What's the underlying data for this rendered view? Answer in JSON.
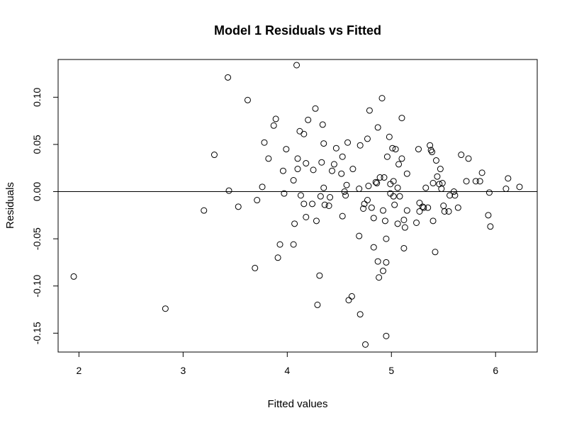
{
  "chart_data": {
    "type": "scatter",
    "title": "Model 1 Residuals vs Fitted",
    "xlabel": "Fitted values",
    "ylabel": "Residuals",
    "xlim": [
      1.8,
      6.4
    ],
    "ylim": [
      -0.17,
      0.14
    ],
    "x_ticks": [
      2,
      3,
      4,
      5,
      6
    ],
    "x_tick_labels": [
      "2",
      "3",
      "4",
      "5",
      "6"
    ],
    "y_ticks": [
      -0.15,
      -0.1,
      -0.05,
      0.0,
      0.05,
      0.1
    ],
    "y_tick_labels": [
      "-0.15",
      "-0.10",
      "-0.05",
      "0.00",
      "0.05",
      "0.10"
    ],
    "reference_line_y": 0,
    "grid": false,
    "legend": "none",
    "points": [
      [
        1.95,
        -0.09
      ],
      [
        2.83,
        -0.124
      ],
      [
        3.2,
        -0.02
      ],
      [
        3.3,
        0.039
      ],
      [
        3.43,
        0.121
      ],
      [
        3.44,
        0.001
      ],
      [
        3.53,
        -0.016
      ],
      [
        3.62,
        0.097
      ],
      [
        3.69,
        -0.081
      ],
      [
        3.71,
        -0.009
      ],
      [
        3.76,
        0.005
      ],
      [
        3.78,
        0.052
      ],
      [
        3.82,
        0.035
      ],
      [
        3.87,
        0.07
      ],
      [
        3.89,
        0.077
      ],
      [
        3.91,
        -0.07
      ],
      [
        3.93,
        -0.056
      ],
      [
        3.96,
        0.022
      ],
      [
        3.97,
        -0.002
      ],
      [
        3.99,
        0.045
      ],
      [
        4.06,
        0.012
      ],
      [
        4.06,
        -0.056
      ],
      [
        4.07,
        -0.034
      ],
      [
        4.09,
        0.134
      ],
      [
        4.1,
        0.024
      ],
      [
        4.1,
        0.035
      ],
      [
        4.12,
        0.064
      ],
      [
        4.13,
        -0.004
      ],
      [
        4.16,
        0.061
      ],
      [
        4.16,
        -0.013
      ],
      [
        4.18,
        0.03
      ],
      [
        4.18,
        -0.027
      ],
      [
        4.2,
        0.076
      ],
      [
        4.24,
        -0.013
      ],
      [
        4.25,
        0.023
      ],
      [
        4.27,
        0.088
      ],
      [
        4.28,
        -0.031
      ],
      [
        4.29,
        -0.12
      ],
      [
        4.31,
        -0.089
      ],
      [
        4.32,
        -0.005
      ],
      [
        4.33,
        0.031
      ],
      [
        4.34,
        0.071
      ],
      [
        4.35,
        0.051
      ],
      [
        4.35,
        0.004
      ],
      [
        4.36,
        -0.014
      ],
      [
        4.4,
        -0.015
      ],
      [
        4.41,
        -0.006
      ],
      [
        4.43,
        0.022
      ],
      [
        4.45,
        0.029
      ],
      [
        4.47,
        0.046
      ],
      [
        4.52,
        0.019
      ],
      [
        4.53,
        0.037
      ],
      [
        4.53,
        -0.026
      ],
      [
        4.55,
        -0.0
      ],
      [
        4.56,
        -0.004
      ],
      [
        4.57,
        0.007
      ],
      [
        4.58,
        0.052
      ],
      [
        4.59,
        -0.115
      ],
      [
        4.62,
        -0.111
      ],
      [
        4.63,
        0.024
      ],
      [
        4.69,
        -0.047
      ],
      [
        4.69,
        0.003
      ],
      [
        4.7,
        0.049
      ],
      [
        4.7,
        -0.13
      ],
      [
        4.73,
        -0.018
      ],
      [
        4.74,
        -0.013
      ],
      [
        4.75,
        -0.162
      ],
      [
        4.77,
        -0.009
      ],
      [
        4.77,
        0.056
      ],
      [
        4.78,
        0.006
      ],
      [
        4.79,
        0.086
      ],
      [
        4.81,
        -0.017
      ],
      [
        4.83,
        -0.059
      ],
      [
        4.83,
        -0.028
      ],
      [
        4.85,
        0.01
      ],
      [
        4.86,
        0.009
      ],
      [
        4.87,
        0.068
      ],
      [
        4.87,
        -0.074
      ],
      [
        4.88,
        -0.091
      ],
      [
        4.89,
        0.015
      ],
      [
        4.91,
        0.099
      ],
      [
        4.92,
        -0.02
      ],
      [
        4.92,
        -0.084
      ],
      [
        4.93,
        0.015
      ],
      [
        4.94,
        -0.031
      ],
      [
        4.95,
        -0.153
      ],
      [
        4.95,
        -0.075
      ],
      [
        4.95,
        -0.05
      ],
      [
        4.96,
        0.037
      ],
      [
        4.98,
        0.058
      ],
      [
        4.99,
        -0.002
      ],
      [
        4.99,
        0.008
      ],
      [
        5.01,
        0.046
      ],
      [
        5.02,
        0.011
      ],
      [
        5.02,
        -0.005
      ],
      [
        5.03,
        -0.014
      ],
      [
        5.04,
        0.045
      ],
      [
        5.06,
        0.004
      ],
      [
        5.06,
        -0.034
      ],
      [
        5.07,
        0.029
      ],
      [
        5.08,
        -0.005
      ],
      [
        5.1,
        0.035
      ],
      [
        5.1,
        0.078
      ],
      [
        5.12,
        -0.03
      ],
      [
        5.12,
        -0.06
      ],
      [
        5.13,
        -0.038
      ],
      [
        5.15,
        -0.02
      ],
      [
        5.15,
        0.019
      ],
      [
        5.24,
        -0.033
      ],
      [
        5.26,
        0.045
      ],
      [
        5.27,
        -0.012
      ],
      [
        5.27,
        -0.021
      ],
      [
        5.3,
        -0.016
      ],
      [
        5.31,
        -0.017
      ],
      [
        5.33,
        0.004
      ],
      [
        5.35,
        -0.017
      ],
      [
        5.37,
        0.049
      ],
      [
        5.38,
        0.044
      ],
      [
        5.39,
        0.042
      ],
      [
        5.4,
        0.009
      ],
      [
        5.4,
        -0.031
      ],
      [
        5.42,
        -0.064
      ],
      [
        5.43,
        0.033
      ],
      [
        5.44,
        0.016
      ],
      [
        5.46,
        0.008
      ],
      [
        5.47,
        0.024
      ],
      [
        5.48,
        0.003
      ],
      [
        5.49,
        0.009
      ],
      [
        5.5,
        -0.015
      ],
      [
        5.51,
        -0.021
      ],
      [
        5.55,
        -0.021
      ],
      [
        5.56,
        -0.004
      ],
      [
        5.6,
        0.0
      ],
      [
        5.61,
        -0.004
      ],
      [
        5.64,
        -0.017
      ],
      [
        5.67,
        0.039
      ],
      [
        5.72,
        0.011
      ],
      [
        5.74,
        0.035
      ],
      [
        5.81,
        0.011
      ],
      [
        5.85,
        0.011
      ],
      [
        5.87,
        0.02
      ],
      [
        5.93,
        -0.025
      ],
      [
        5.94,
        -0.001
      ],
      [
        5.95,
        -0.037
      ],
      [
        6.1,
        0.003
      ],
      [
        6.12,
        0.014
      ],
      [
        6.23,
        0.005
      ]
    ]
  }
}
